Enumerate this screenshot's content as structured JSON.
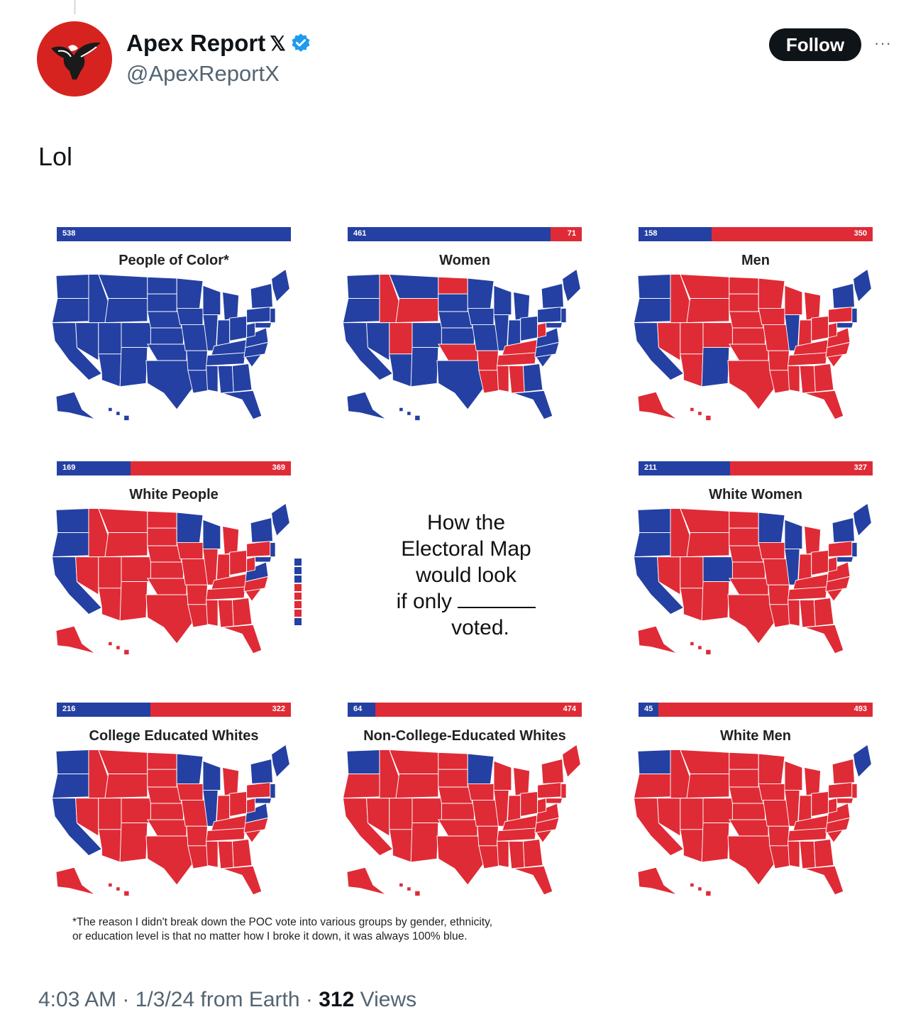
{
  "author": {
    "name": "Apex Report",
    "x_badge": "𝕏",
    "handle": "@ApexReportX"
  },
  "actions": {
    "follow_label": "Follow",
    "more_label": "···"
  },
  "tweet": {
    "text": "Lol"
  },
  "image": {
    "center_text": {
      "line1": "How the",
      "line2": "Electoral Map",
      "line3": "would look",
      "line4": "if only",
      "line5": "voted."
    },
    "maps": [
      {
        "title": "People of Color*",
        "blue": "538",
        "red": "",
        "blue_share": 1.0,
        "scheme": "all-blue"
      },
      {
        "title": "Women",
        "blue": "461",
        "red": "71",
        "blue_share": 0.866,
        "scheme": "women"
      },
      {
        "title": "Men",
        "blue": "158",
        "red": "350",
        "blue_share": 0.311,
        "scheme": "men"
      },
      {
        "title": "White People",
        "blue": "169",
        "red": "369",
        "blue_share": 0.314,
        "scheme": "white"
      },
      {
        "title": "White Women",
        "blue": "211",
        "red": "327",
        "blue_share": 0.392,
        "scheme": "white-women"
      },
      {
        "title": "College Educated Whites",
        "blue": "216",
        "red": "322",
        "blue_share": 0.401,
        "scheme": "college"
      },
      {
        "title": "Non-College-Educated Whites",
        "blue": "64",
        "red": "474",
        "blue_share": 0.119,
        "scheme": "non-college"
      },
      {
        "title": "White Men",
        "blue": "45",
        "red": "493",
        "blue_share": 0.084,
        "scheme": "white-men"
      }
    ],
    "footnote_line1": "*The reason I didn't break down the POC vote into various groups by gender, ethnicity,",
    "footnote_line2": "or education level is that no matter how I broke it down, it was always 100% blue.",
    "colors": {
      "blue": "#2440a2",
      "red": "#df2b36"
    }
  },
  "meta": {
    "time": "4:03 AM",
    "date": "1/3/24",
    "source": "from Earth",
    "views_count": "312",
    "views_label": "Views"
  }
}
